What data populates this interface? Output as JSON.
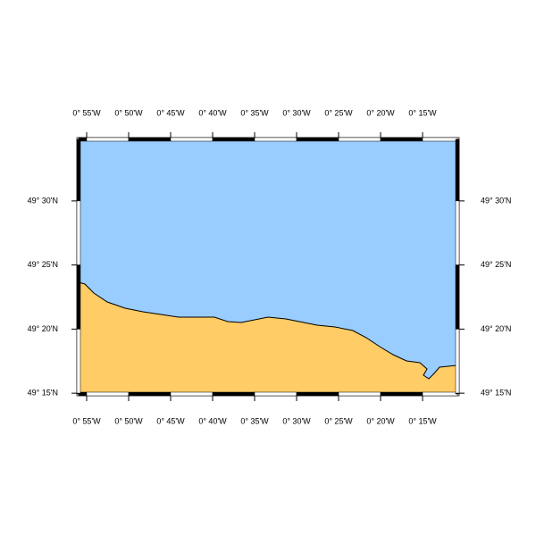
{
  "map": {
    "xlim": [
      -0.9326,
      -0.1809
    ],
    "ylim": [
      49.249,
      49.58
    ],
    "xticks": [
      {
        "value": -0.91667,
        "label": "0° 55'W"
      },
      {
        "value": -0.83333,
        "label": "0° 50'W"
      },
      {
        "value": -0.75,
        "label": "0° 45'W"
      },
      {
        "value": -0.66667,
        "label": "0° 40'W"
      },
      {
        "value": -0.58333,
        "label": "0° 35'W"
      },
      {
        "value": -0.5,
        "label": "0° 30'W"
      },
      {
        "value": -0.41667,
        "label": "0° 25'W"
      },
      {
        "value": -0.33333,
        "label": "0° 20'W"
      },
      {
        "value": -0.25,
        "label": "0° 15'W"
      }
    ],
    "yticks": [
      {
        "value": 49.25,
        "label": "49° 15'N"
      },
      {
        "value": 49.33333,
        "label": "49° 20'N"
      },
      {
        "value": 49.41667,
        "label": "49° 25'N"
      },
      {
        "value": 49.5,
        "label": "49° 30'N"
      }
    ],
    "water_color": "#99ccff",
    "land_color": "#ffcc66"
  }
}
